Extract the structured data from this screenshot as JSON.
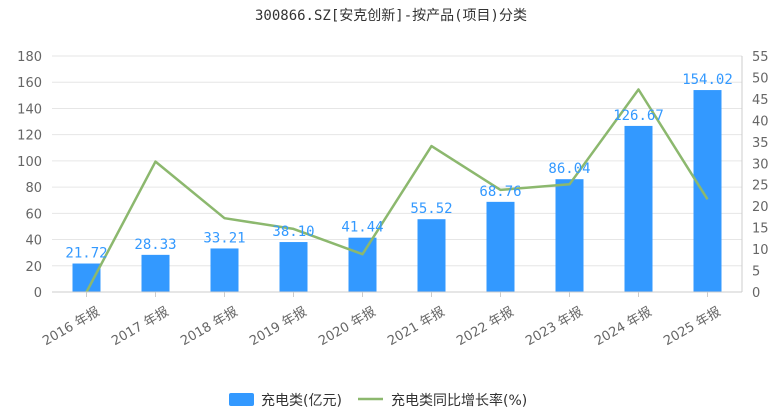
{
  "chart_data": {
    "type": "bar+line",
    "title": "300866.SZ[安克创新]-按产品(项目)分类",
    "categories": [
      "2016 年报",
      "2017 年报",
      "2018 年报",
      "2019 年报",
      "2020 年报",
      "2021 年报",
      "2022 年报",
      "2023 年报",
      "2024 年报",
      "2025 年报"
    ],
    "series": [
      {
        "name": "充电类(亿元)",
        "type": "bar",
        "axis": "left",
        "color": "#3399ff",
        "values": [
          21.72,
          28.33,
          33.21,
          38.1,
          41.44,
          55.52,
          68.76,
          86.04,
          126.67,
          154.02
        ],
        "labels": [
          "21.72",
          "28.33",
          "33.21",
          "38.10",
          "41.44",
          "55.52",
          "68.76",
          "86.04",
          "126.67",
          "154.02"
        ]
      },
      {
        "name": "充电类同比增长率(%)",
        "type": "line",
        "axis": "right",
        "color": "#8cb86e",
        "values": [
          0,
          30.4,
          17.2,
          14.7,
          8.8,
          34.0,
          23.8,
          25.1,
          47.2,
          21.6
        ]
      }
    ],
    "y_left": {
      "min": 0,
      "max": 180,
      "ticks": [
        "0",
        "20",
        "40",
        "60",
        "80",
        "100",
        "120",
        "140",
        "160",
        "180"
      ]
    },
    "y_right": {
      "min": 0,
      "max": 55,
      "ticks": [
        "0",
        "5",
        "10",
        "15",
        "20",
        "25",
        "30",
        "35",
        "40",
        "45",
        "50",
        "55"
      ]
    },
    "grid": true,
    "legend_position": "bottom"
  }
}
